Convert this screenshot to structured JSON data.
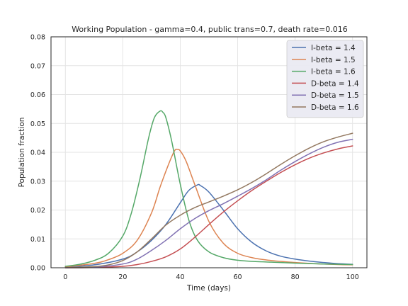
{
  "chart_data": {
    "type": "line",
    "title": "Working Population - gamma=0.4, public trans=0.7, death rate=0.016",
    "xlabel": "Time (days)",
    "ylabel": "Population fraction",
    "xlim": [
      -5,
      105
    ],
    "ylim": [
      0,
      0.08
    ],
    "xticks": [
      0,
      20,
      40,
      60,
      80,
      100
    ],
    "yticks": [
      0.0,
      0.01,
      0.02,
      0.03,
      0.04,
      0.05,
      0.06,
      0.07,
      0.08
    ],
    "xtick_labels": [
      "0",
      "20",
      "40",
      "60",
      "80",
      "100"
    ],
    "ytick_labels": [
      "0.00",
      "0.01",
      "0.02",
      "0.03",
      "0.04",
      "0.05",
      "0.06",
      "0.07",
      "0.08"
    ],
    "grid": true,
    "legend_position": "top-right",
    "x": [
      0,
      5,
      10,
      15,
      20,
      25,
      30,
      35,
      40,
      45,
      50,
      55,
      60,
      65,
      70,
      75,
      80,
      85,
      90,
      95,
      100
    ],
    "series": [
      {
        "name": "I-beta = 1.4",
        "color": "#4c72b0",
        "x": [
          0,
          10,
          20,
          25,
          30,
          35,
          40,
          43,
          46,
          47,
          50,
          55,
          60,
          65,
          70,
          75,
          80,
          85,
          90,
          95,
          100
        ],
        "values": [
          0.0003,
          0.001,
          0.003,
          0.0055,
          0.0095,
          0.015,
          0.0225,
          0.0268,
          0.0287,
          0.0285,
          0.0262,
          0.02,
          0.0135,
          0.0088,
          0.0058,
          0.004,
          0.003,
          0.0023,
          0.0018,
          0.0014,
          0.0012
        ]
      },
      {
        "name": "I-beta = 1.5",
        "color": "#dd8452",
        "x": [
          0,
          10,
          15,
          20,
          25,
          30,
          33,
          36,
          38,
          39,
          40,
          42,
          45,
          50,
          55,
          60,
          65,
          70,
          75,
          80,
          85,
          90,
          95,
          100
        ],
        "values": [
          0.0003,
          0.0015,
          0.0028,
          0.005,
          0.0095,
          0.019,
          0.028,
          0.036,
          0.0405,
          0.041,
          0.0405,
          0.037,
          0.029,
          0.016,
          0.0085,
          0.005,
          0.0035,
          0.0027,
          0.0022,
          0.0018,
          0.0015,
          0.0013,
          0.0011,
          0.001
        ]
      },
      {
        "name": "I-beta = 1.6",
        "color": "#55a868",
        "x": [
          0,
          5,
          10,
          15,
          20,
          23,
          26,
          29,
          31,
          33,
          34,
          35,
          37,
          40,
          43,
          46,
          50,
          55,
          60,
          65,
          70,
          80,
          90,
          100
        ],
        "values": [
          0.0005,
          0.0012,
          0.0025,
          0.005,
          0.011,
          0.019,
          0.031,
          0.045,
          0.052,
          0.0543,
          0.0538,
          0.052,
          0.044,
          0.029,
          0.0165,
          0.0095,
          0.0055,
          0.0035,
          0.0026,
          0.0022,
          0.002,
          0.0016,
          0.0013,
          0.0011
        ]
      },
      {
        "name": "D-beta = 1.4",
        "color": "#c44e52",
        "x": [
          0,
          10,
          20,
          25,
          30,
          35,
          40,
          45,
          50,
          55,
          60,
          65,
          70,
          75,
          80,
          85,
          90,
          95,
          100
        ],
        "values": [
          0.0,
          0.0001,
          0.0005,
          0.0011,
          0.0022,
          0.0038,
          0.0065,
          0.0105,
          0.015,
          0.0193,
          0.0232,
          0.0268,
          0.03,
          0.033,
          0.0357,
          0.038,
          0.0398,
          0.0412,
          0.0422
        ]
      },
      {
        "name": "D-beta = 1.5",
        "color": "#8172b3",
        "x": [
          0,
          10,
          20,
          25,
          30,
          35,
          40,
          45,
          50,
          55,
          60,
          65,
          70,
          75,
          80,
          85,
          90,
          95,
          100
        ],
        "values": [
          0.0,
          0.0002,
          0.0013,
          0.003,
          0.006,
          0.0095,
          0.0135,
          0.017,
          0.0198,
          0.0222,
          0.0248,
          0.0275,
          0.0305,
          0.0338,
          0.0368,
          0.0395,
          0.0418,
          0.0435,
          0.0445
        ]
      },
      {
        "name": "D-beta = 1.6",
        "color": "#937860",
        "x": [
          0,
          10,
          15,
          20,
          25,
          30,
          35,
          40,
          45,
          50,
          55,
          60,
          65,
          70,
          75,
          80,
          85,
          90,
          95,
          100
        ],
        "values": [
          0.0,
          0.0004,
          0.001,
          0.0025,
          0.0055,
          0.01,
          0.0148,
          0.0182,
          0.0208,
          0.0228,
          0.0248,
          0.027,
          0.0296,
          0.0326,
          0.0358,
          0.0388,
          0.0415,
          0.0437,
          0.0453,
          0.0466
        ]
      }
    ]
  }
}
